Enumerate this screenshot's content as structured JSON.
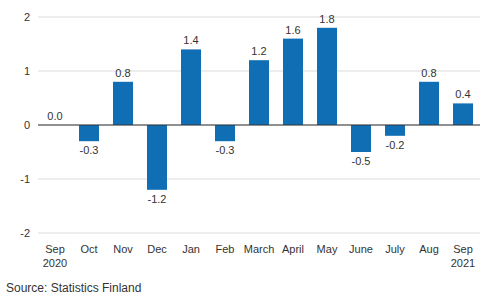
{
  "chart_data": {
    "type": "bar",
    "categories": [
      "Sep 2020",
      "Oct",
      "Nov",
      "Dec",
      "Jan",
      "Feb",
      "March",
      "April",
      "May",
      "June",
      "July",
      "Aug",
      "Sep 2021"
    ],
    "values": [
      0.0,
      -0.3,
      0.8,
      -1.2,
      1.4,
      -0.3,
      1.2,
      1.6,
      1.8,
      -0.5,
      -0.2,
      0.8,
      0.4
    ],
    "value_labels": [
      "0.0",
      "-0.3",
      "0.8",
      "-1.2",
      "1.4",
      "-0.3",
      "1.2",
      "1.6",
      "1.8",
      "-0.5",
      "-0.2",
      "0.8",
      "0.4"
    ],
    "color": "#0f6eb4",
    "ylim": [
      -2,
      2
    ],
    "yticks": [
      -2,
      -1,
      0,
      1,
      2
    ],
    "grid": true,
    "data_labels": true,
    "source": "Source: Statistics Finland"
  }
}
